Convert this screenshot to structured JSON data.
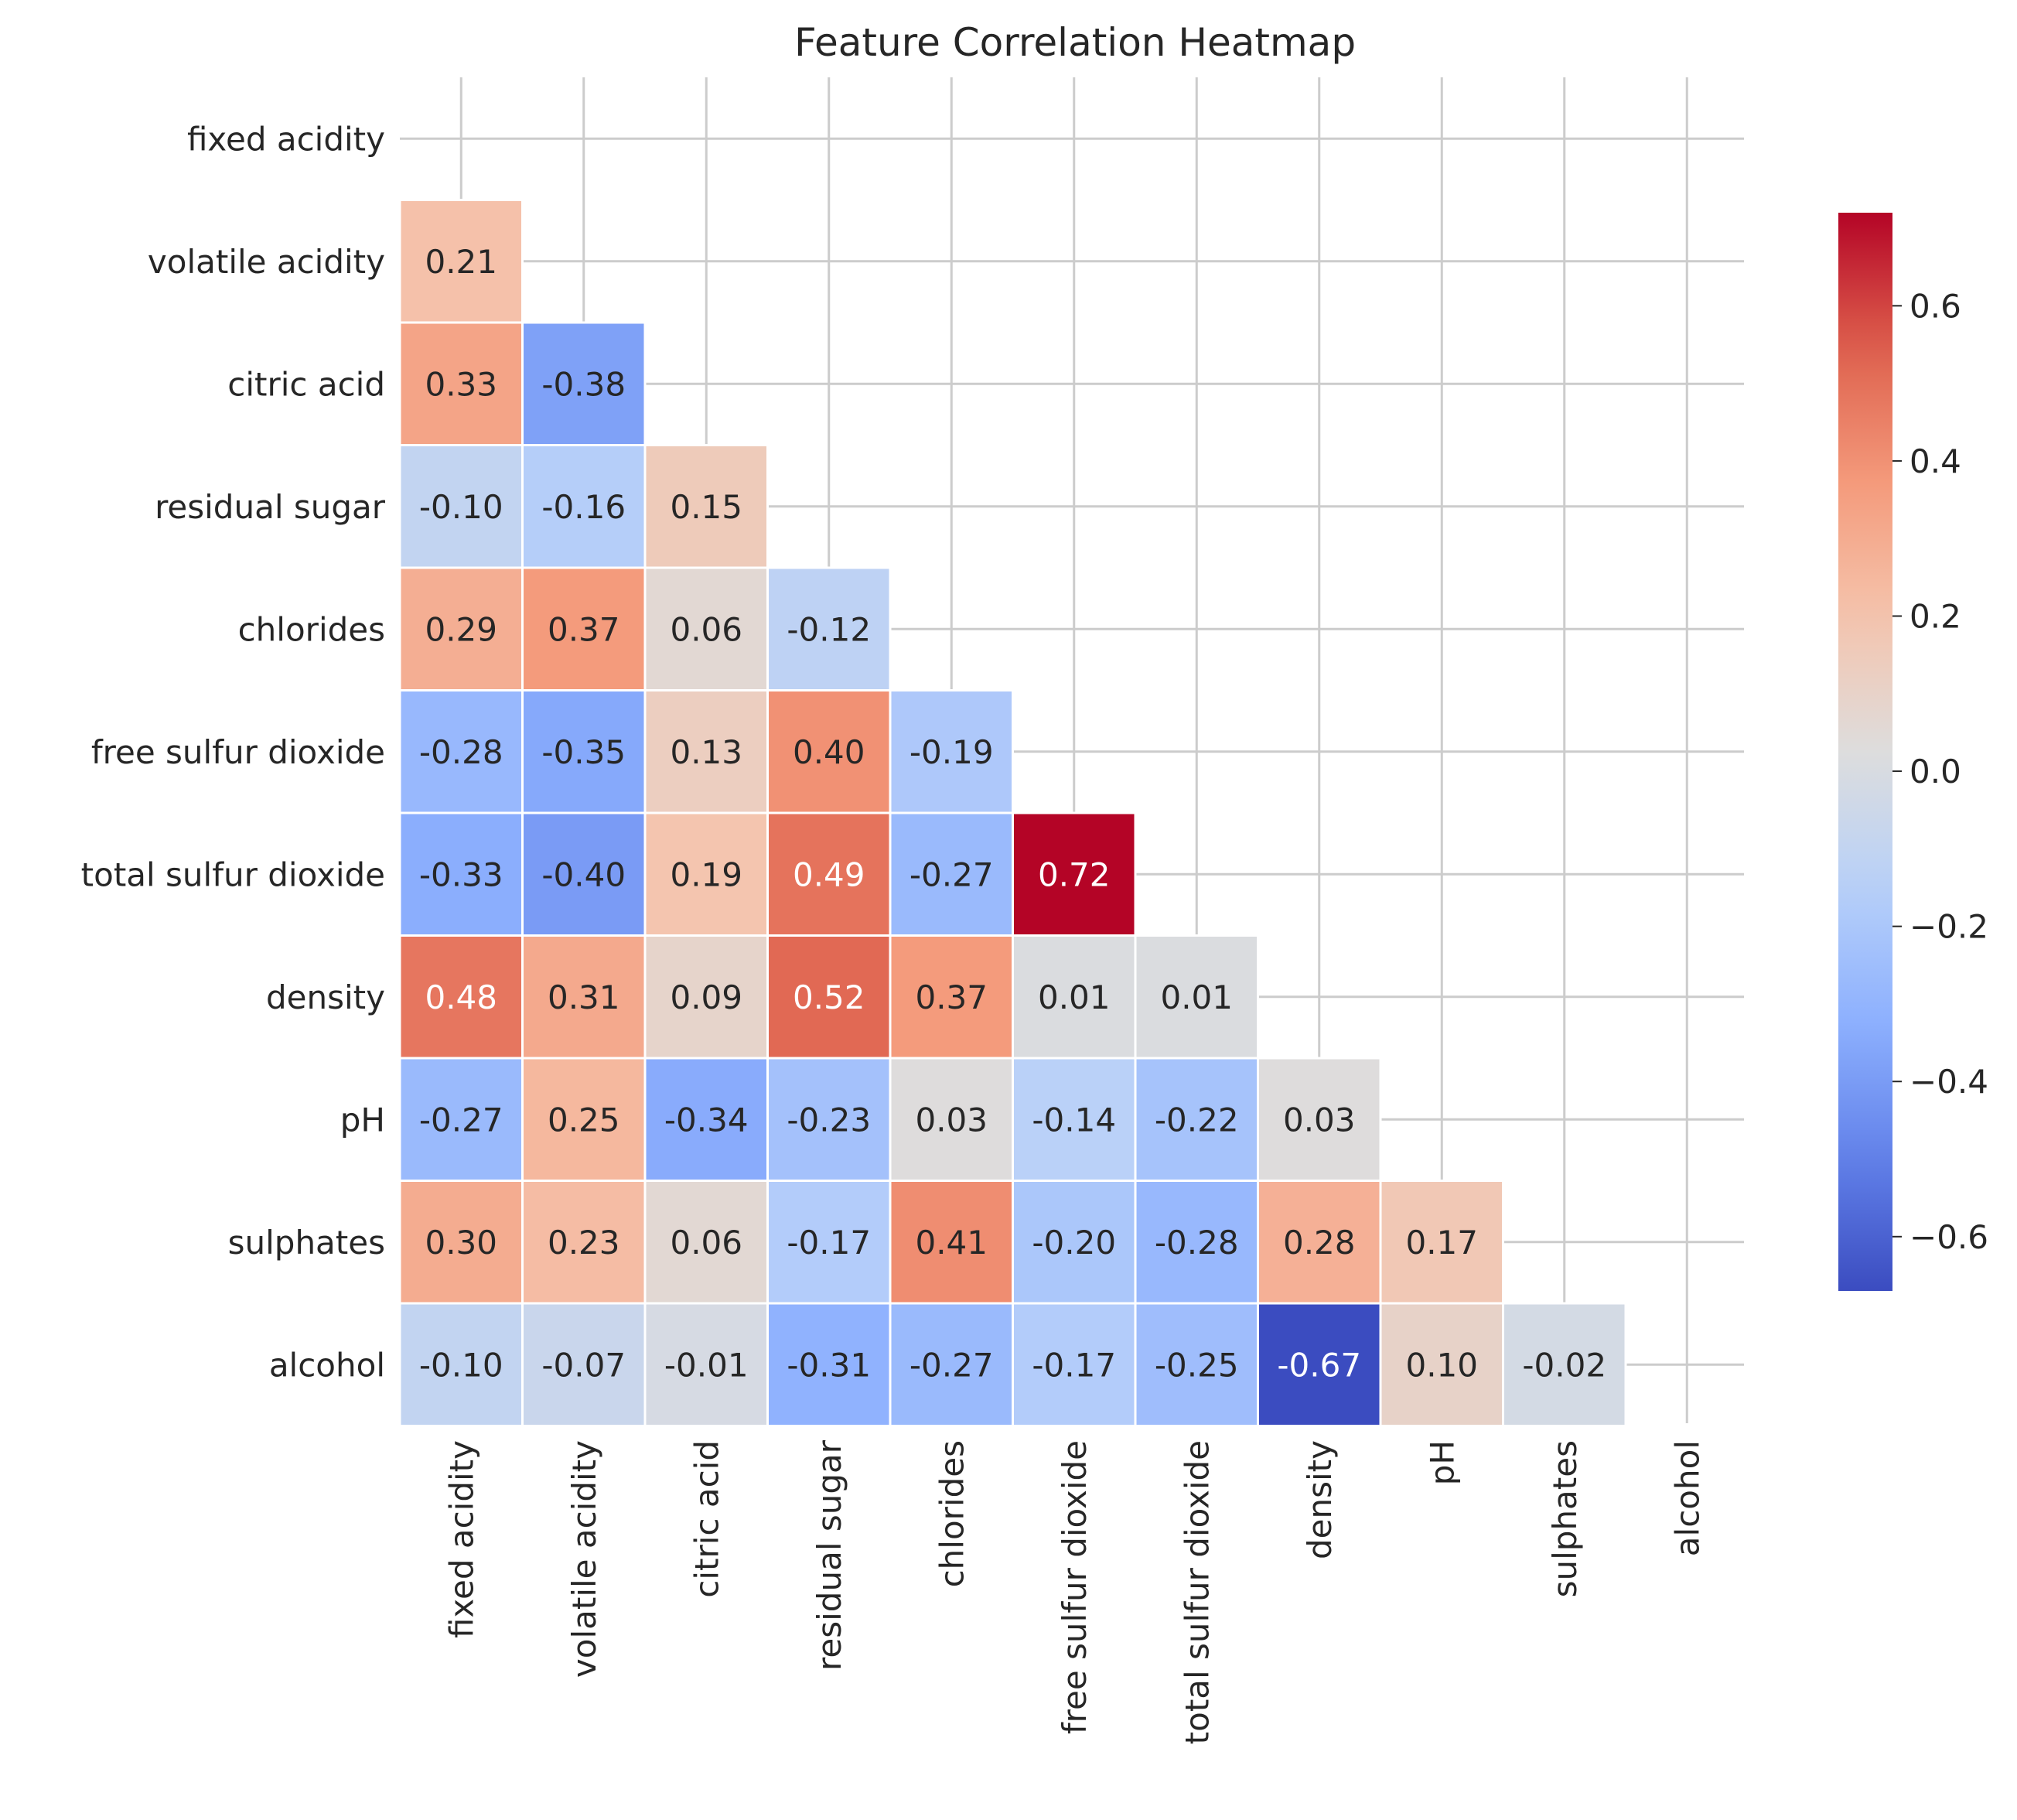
{
  "chart_data": {
    "type": "heatmap",
    "title": "Feature Correlation Heatmap",
    "mask": "upper-triangle-including-diagonal",
    "colormap": "coolwarm",
    "value_range": [
      -0.67,
      0.72
    ],
    "labels": [
      "fixed acidity",
      "volatile acidity",
      "citric acid",
      "residual sugar",
      "chlorides",
      "free sulfur dioxide",
      "total sulfur dioxide",
      "density",
      "pH",
      "sulphates",
      "alcohol"
    ],
    "matrix": [
      [
        null,
        null,
        null,
        null,
        null,
        null,
        null,
        null,
        null,
        null,
        null
      ],
      [
        0.21,
        null,
        null,
        null,
        null,
        null,
        null,
        null,
        null,
        null,
        null
      ],
      [
        0.33,
        -0.38,
        null,
        null,
        null,
        null,
        null,
        null,
        null,
        null,
        null
      ],
      [
        -0.1,
        -0.16,
        0.15,
        null,
        null,
        null,
        null,
        null,
        null,
        null,
        null
      ],
      [
        0.29,
        0.37,
        0.06,
        -0.12,
        null,
        null,
        null,
        null,
        null,
        null,
        null
      ],
      [
        -0.28,
        -0.35,
        0.13,
        0.4,
        -0.19,
        null,
        null,
        null,
        null,
        null,
        null
      ],
      [
        -0.33,
        -0.4,
        0.19,
        0.49,
        -0.27,
        0.72,
        null,
        null,
        null,
        null,
        null
      ],
      [
        0.48,
        0.31,
        0.09,
        0.52,
        0.37,
        0.01,
        0.01,
        null,
        null,
        null,
        null
      ],
      [
        -0.27,
        0.25,
        -0.34,
        -0.23,
        0.03,
        -0.14,
        -0.22,
        0.03,
        null,
        null,
        null
      ],
      [
        0.3,
        0.23,
        0.06,
        -0.17,
        0.41,
        -0.2,
        -0.28,
        0.28,
        0.17,
        null,
        null
      ],
      [
        -0.1,
        -0.07,
        -0.01,
        -0.31,
        -0.27,
        -0.17,
        -0.25,
        -0.67,
        0.1,
        -0.02,
        null
      ]
    ],
    "colorbar": {
      "ticks": [
        0.6,
        0.4,
        0.2,
        0.0,
        -0.2,
        -0.4,
        -0.6
      ],
      "tick_labels": [
        "0.6",
        "0.4",
        "0.2",
        "0.0",
        "−0.2",
        "−0.4",
        "−0.6"
      ]
    },
    "grid": true
  }
}
